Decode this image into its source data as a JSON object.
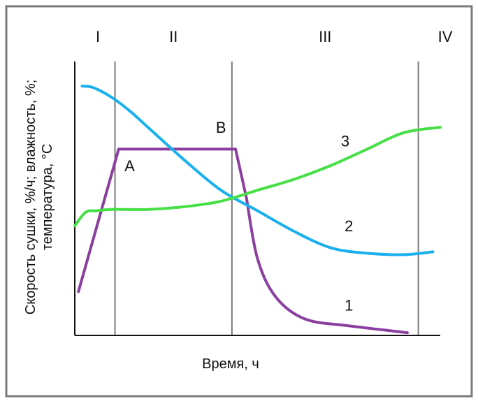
{
  "chart_data": {
    "type": "line",
    "title": "",
    "xlabel": "Время, ч",
    "ylabel_lines": [
      "Скорость сушки, %/ч; влажность, %;",
      "температура, °C"
    ],
    "xlim": [
      0,
      100
    ],
    "ylim": [
      0,
      100
    ],
    "grid": false,
    "zones": [
      {
        "label": "I",
        "boundary_x": 11
      },
      {
        "label": "II",
        "boundary_x": 43
      },
      {
        "label": "III",
        "boundary_x": 94
      },
      {
        "label": "IV"
      }
    ],
    "series": [
      {
        "name": "1",
        "color": "#8b3fa0",
        "x": [
          1,
          12,
          44,
          47,
          50,
          55,
          63,
          75,
          91
        ],
        "y": [
          16,
          68,
          68,
          50,
          28,
          14,
          6,
          3.5,
          1
        ]
      },
      {
        "name": "2",
        "color": "#1ab0ee",
        "x": [
          2,
          5,
          10,
          15,
          20,
          30,
          40,
          50,
          60,
          70,
          80,
          90,
          98
        ],
        "y": [
          91,
          90.5,
          87,
          82,
          76,
          64,
          53,
          45.5,
          38,
          32,
          30,
          29.5,
          30.5
        ]
      },
      {
        "name": "3",
        "color": "#46e046",
        "x": [
          0,
          3,
          6,
          10,
          20,
          30,
          40,
          50,
          60,
          70,
          80,
          90,
          100
        ],
        "y": [
          40,
          45,
          45.5,
          46,
          46,
          47,
          49,
          53,
          57,
          62,
          68,
          74,
          76
        ]
      }
    ],
    "annotations": [
      {
        "text": "A",
        "x": 15,
        "y": 60
      },
      {
        "text": "B",
        "x": 40,
        "y": 74
      },
      {
        "text": "3",
        "x": 74,
        "y": 69
      },
      {
        "text": "2",
        "x": 75,
        "y": 38
      },
      {
        "text": "1",
        "x": 75,
        "y": 9
      }
    ]
  }
}
